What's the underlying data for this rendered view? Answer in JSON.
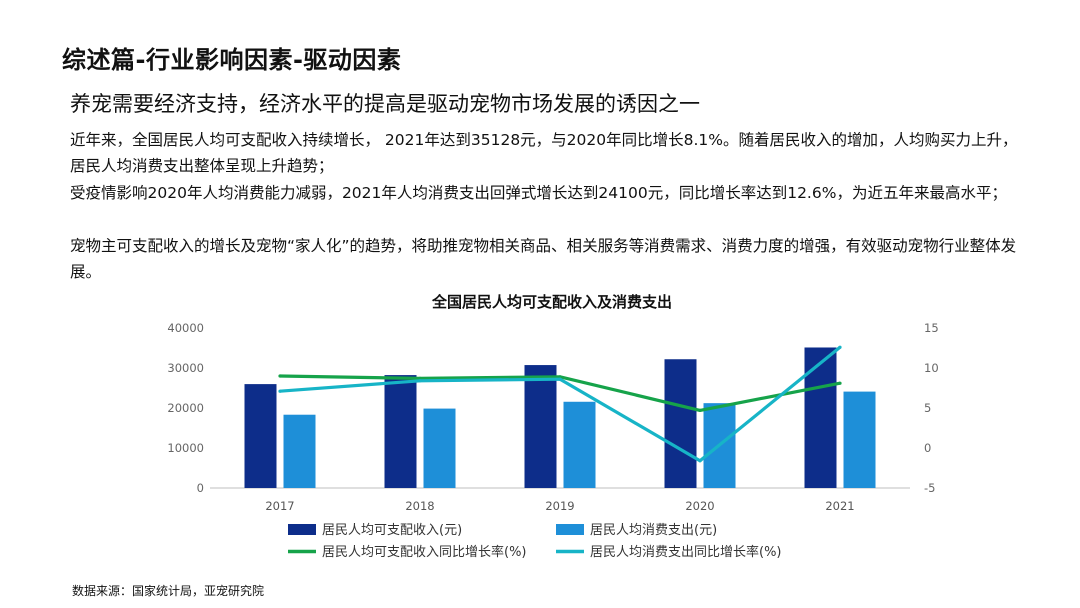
{
  "slide": {
    "title": "综述篇-行业影响因素-驱动因素",
    "subtitle": "养宠需要经济支持，经济水平的提高是驱动宠物市场发展的诱因之一",
    "paragraphs": [
      "近年来，全国居民人均可支配收入持续增长， 2021年达到35128元，与2020年同比增长8.1%。随着居民收入的增加，人均购买力上升，居民人均消费支出整体呈现上升趋势；",
      "受疫情影响2020年人均消费能力减弱，2021年人均消费支出回弹式增长达到24100元，同比增长率达到12.6%，为近五年来最高水平；",
      "宠物主可支配收入的增长及宠物“家人化”的趋势，将助推宠物相关商品、相关服务等消费需求、消费力度的增强，有效驱动宠物行业整体发展。"
    ],
    "source": "数据来源：国家统计局，亚宠研究院"
  },
  "chart_data": {
    "type": "bar",
    "title": "全国居民人均可支配收入及消费支出",
    "categories": [
      "2017",
      "2018",
      "2019",
      "2020",
      "2021"
    ],
    "y_left": {
      "ylim": [
        0,
        40000
      ],
      "ticks": [
        "0",
        "10000",
        "20000",
        "30000",
        "40000"
      ]
    },
    "y_right": {
      "ylim": [
        -5,
        15
      ],
      "ticks": [
        "-5",
        "0",
        "5",
        "10",
        "15"
      ]
    },
    "grid": false,
    "legend_position": "bottom",
    "series": [
      {
        "name": "居民人均可支配收入(元)",
        "type": "bar",
        "axis": "left",
        "color": "#0d2d8a",
        "values": [
          25974,
          28228,
          30733,
          32189,
          35128
        ]
      },
      {
        "name": "居民人均消费支出(元)",
        "type": "bar",
        "axis": "left",
        "color": "#1e8fd8",
        "values": [
          18322,
          19853,
          21559,
          21210,
          24100
        ]
      },
      {
        "name": "居民人均可支配收入同比增长率(%)",
        "type": "line",
        "axis": "right",
        "color": "#16a34a",
        "values": [
          9.0,
          8.7,
          8.9,
          4.7,
          8.1
        ]
      },
      {
        "name": "居民人均消费支出同比增长率(%)",
        "type": "line",
        "axis": "right",
        "color": "#17b4c7",
        "values": [
          7.1,
          8.4,
          8.6,
          -1.6,
          12.6
        ]
      }
    ]
  }
}
